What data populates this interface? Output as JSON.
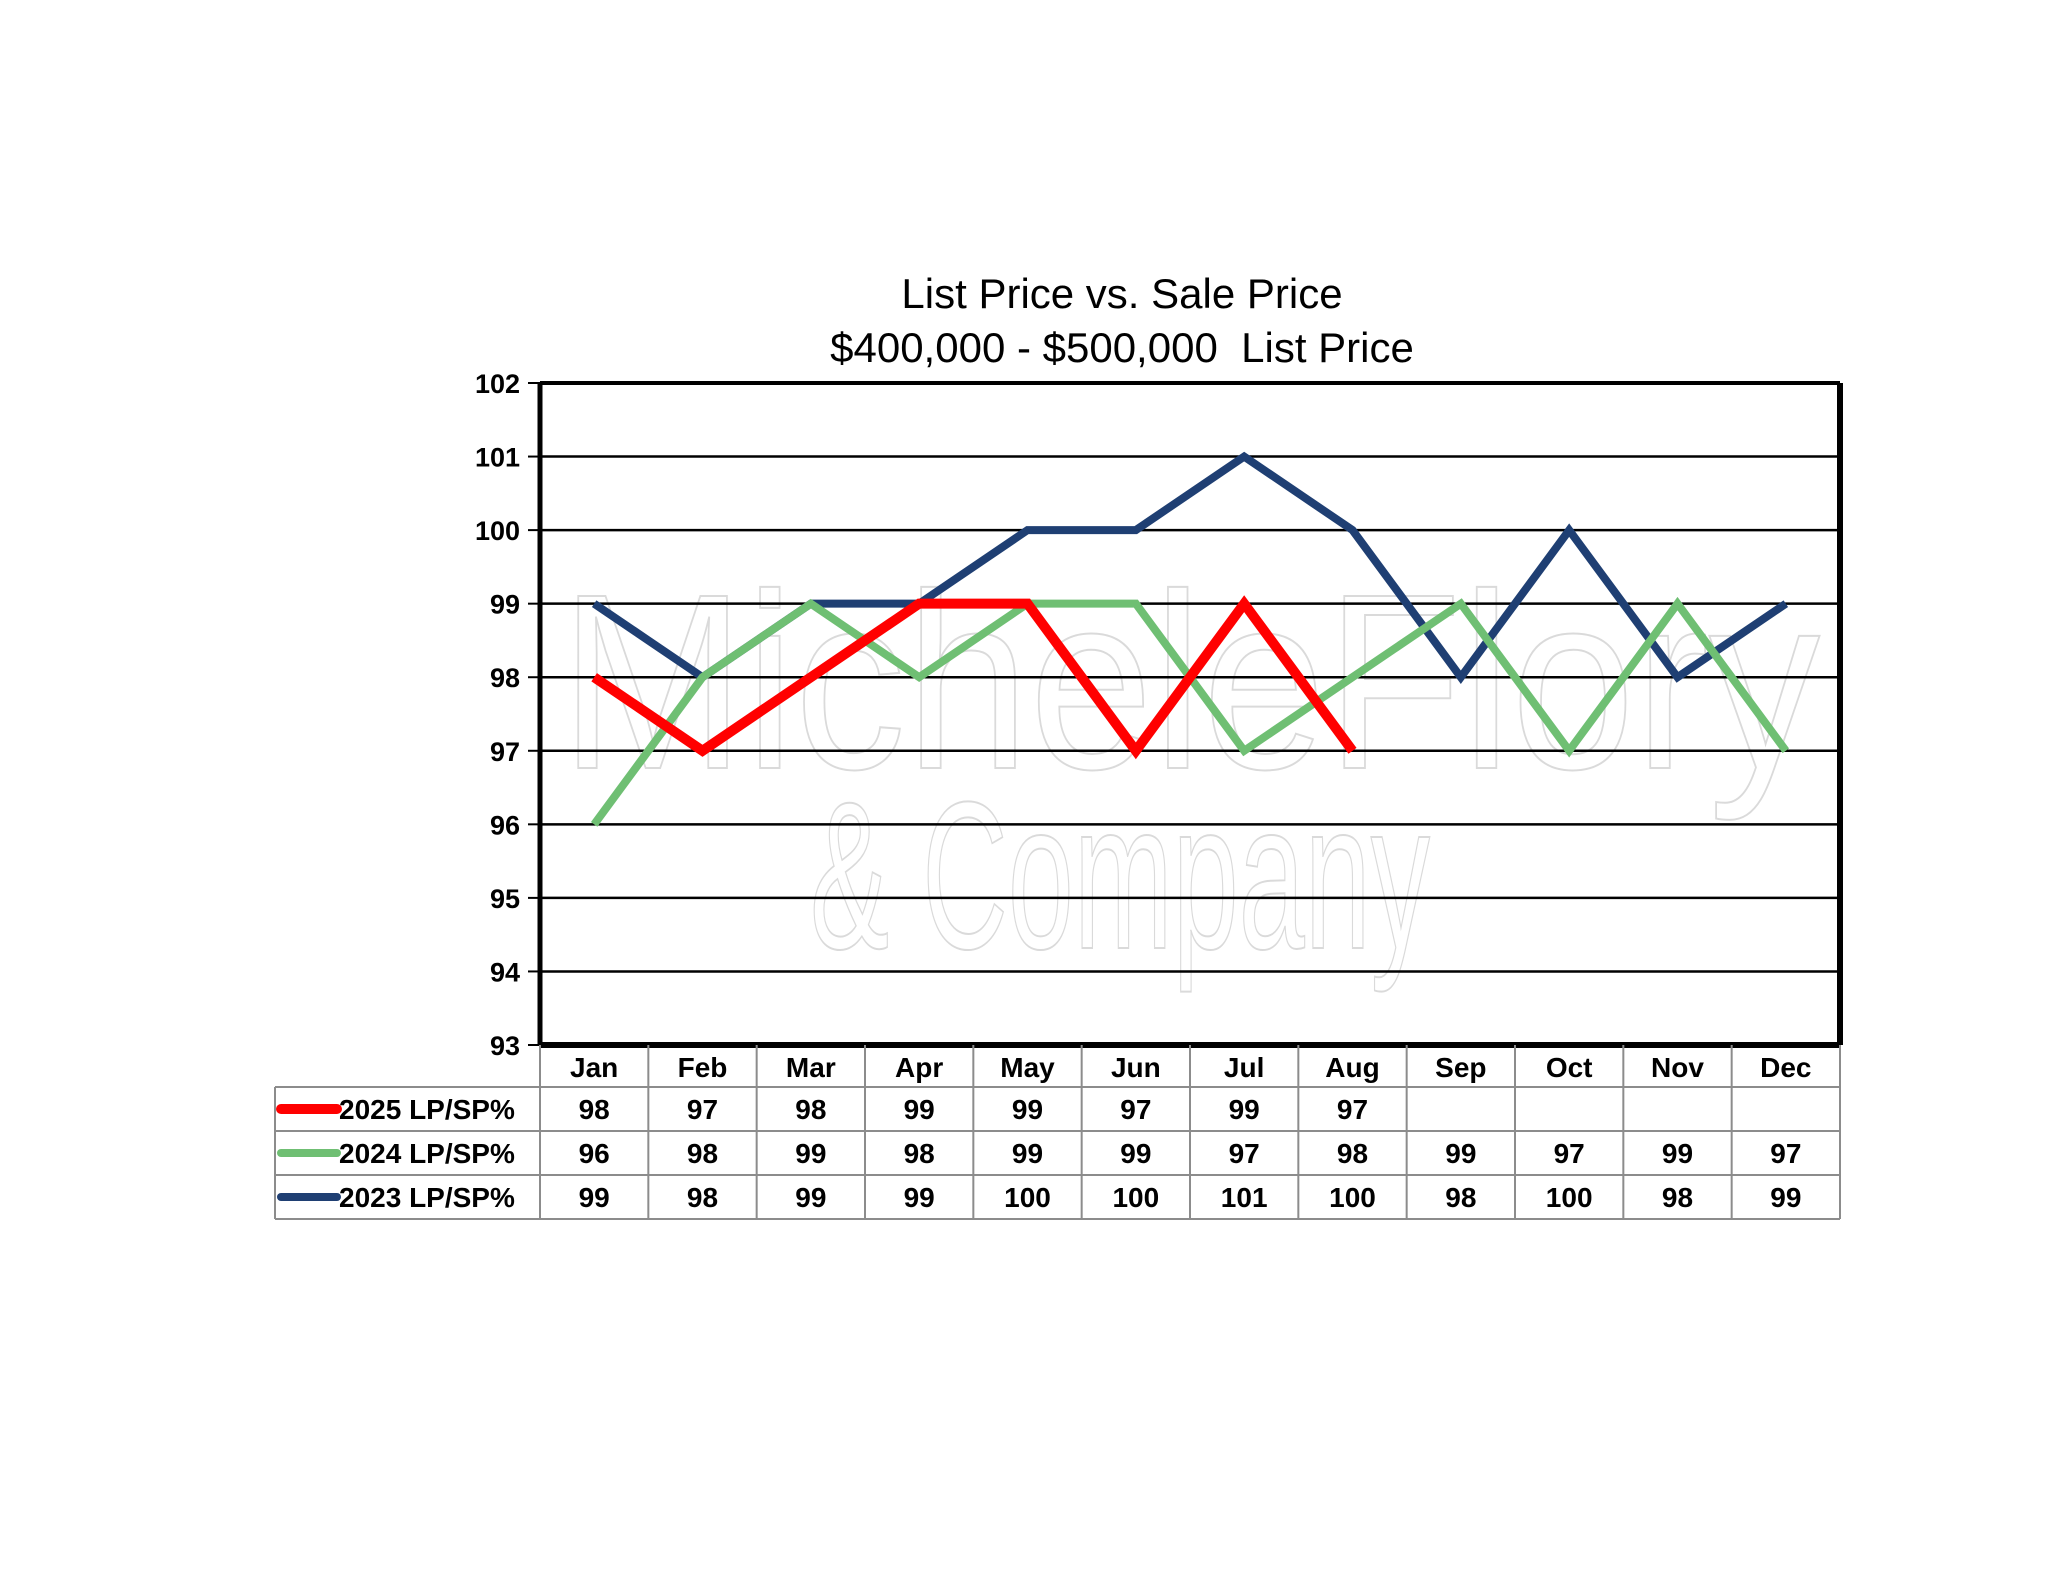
{
  "chart_data": {
    "type": "line",
    "title": "List Price vs. Sale Price",
    "subtitle": "$400,000 - $500,000  List Price",
    "categories": [
      "Jan",
      "Feb",
      "Mar",
      "Apr",
      "May",
      "Jun",
      "Jul",
      "Aug",
      "Sep",
      "Oct",
      "Nov",
      "Dec"
    ],
    "ylim": [
      93,
      102
    ],
    "yticks": [
      93,
      94,
      95,
      96,
      97,
      98,
      99,
      100,
      101,
      102
    ],
    "grid": true,
    "legend": "data-table-below",
    "series": [
      {
        "name": "2025 LP/SP%",
        "color": "#ff0000",
        "values": [
          98,
          97,
          98,
          99,
          99,
          97,
          99,
          97,
          null,
          null,
          null,
          null
        ]
      },
      {
        "name": "2024 LP/SP%",
        "color": "#6fbf73",
        "values": [
          96,
          98,
          99,
          98,
          99,
          99,
          97,
          98,
          99,
          97,
          99,
          97
        ]
      },
      {
        "name": "2023 LP/SP%",
        "color": "#1f3f73",
        "values": [
          99,
          98,
          99,
          99,
          100,
          100,
          101,
          100,
          98,
          100,
          98,
          99
        ]
      }
    ],
    "watermark": {
      "line1": "MicheleFlory",
      "line2": "& Company"
    }
  }
}
